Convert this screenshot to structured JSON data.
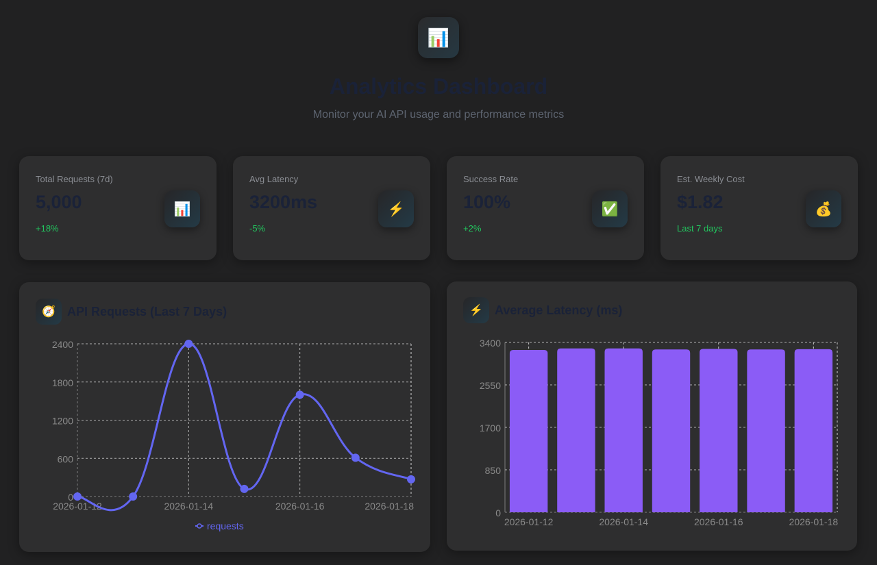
{
  "header": {
    "icon": "bar-chart-icon",
    "icon_glyph": "📊",
    "title": "Analytics Dashboard",
    "subtitle": "Monitor your AI API usage and performance metrics"
  },
  "stats": [
    {
      "label": "Total Requests (7d)",
      "value": "5,000",
      "delta": "+18%",
      "icon": "bar-chart-icon",
      "glyph": "📊"
    },
    {
      "label": "Avg Latency",
      "value": "3200ms",
      "delta": "-5%",
      "icon": "lightning-icon",
      "glyph": "⚡"
    },
    {
      "label": "Success Rate",
      "value": "100%",
      "delta": "+2%",
      "icon": "check-icon",
      "glyph": "✅"
    },
    {
      "label": "Est. Weekly Cost",
      "value": "$1.82",
      "delta": "Last 7 days",
      "icon": "money-bag-icon",
      "glyph": "💰"
    }
  ],
  "colors": {
    "delta": "#22c55e",
    "line": "#6366f1",
    "bar": "#8b5cf6"
  },
  "chart_data": [
    {
      "type": "line",
      "title": "API Requests (Last 7 Days)",
      "title_icon": "compass-icon",
      "title_glyph": "🧭",
      "x": [
        "2026-01-12",
        "2026-01-13",
        "2026-01-14",
        "2026-01-15",
        "2026-01-16",
        "2026-01-17",
        "2026-01-18"
      ],
      "x_tick_labels": [
        "2026-01-12",
        "2026-01-14",
        "2026-01-16",
        "2026-01-18"
      ],
      "series": [
        {
          "name": "requests",
          "values": [
            0,
            0,
            2400,
            120,
            1600,
            610,
            270
          ]
        }
      ],
      "ylim": [
        0,
        2400
      ],
      "y_ticks": [
        0,
        600,
        1200,
        1800,
        2400
      ],
      "grid": true,
      "legend": "bottom",
      "smooth": true
    },
    {
      "type": "bar",
      "title": "Average Latency (ms)",
      "title_icon": "lightning-icon",
      "title_glyph": "⚡",
      "categories": [
        "2026-01-12",
        "2026-01-13",
        "2026-01-14",
        "2026-01-15",
        "2026-01-16",
        "2026-01-17",
        "2026-01-18"
      ],
      "x_tick_labels": [
        "2026-01-12",
        "2026-01-14",
        "2026-01-16",
        "2026-01-18"
      ],
      "values": [
        3250,
        3280,
        3280,
        3260,
        3270,
        3260,
        3265
      ],
      "ylim": [
        0,
        3400
      ],
      "y_ticks": [
        0,
        850,
        1700,
        2550,
        3400
      ],
      "grid": true
    }
  ]
}
